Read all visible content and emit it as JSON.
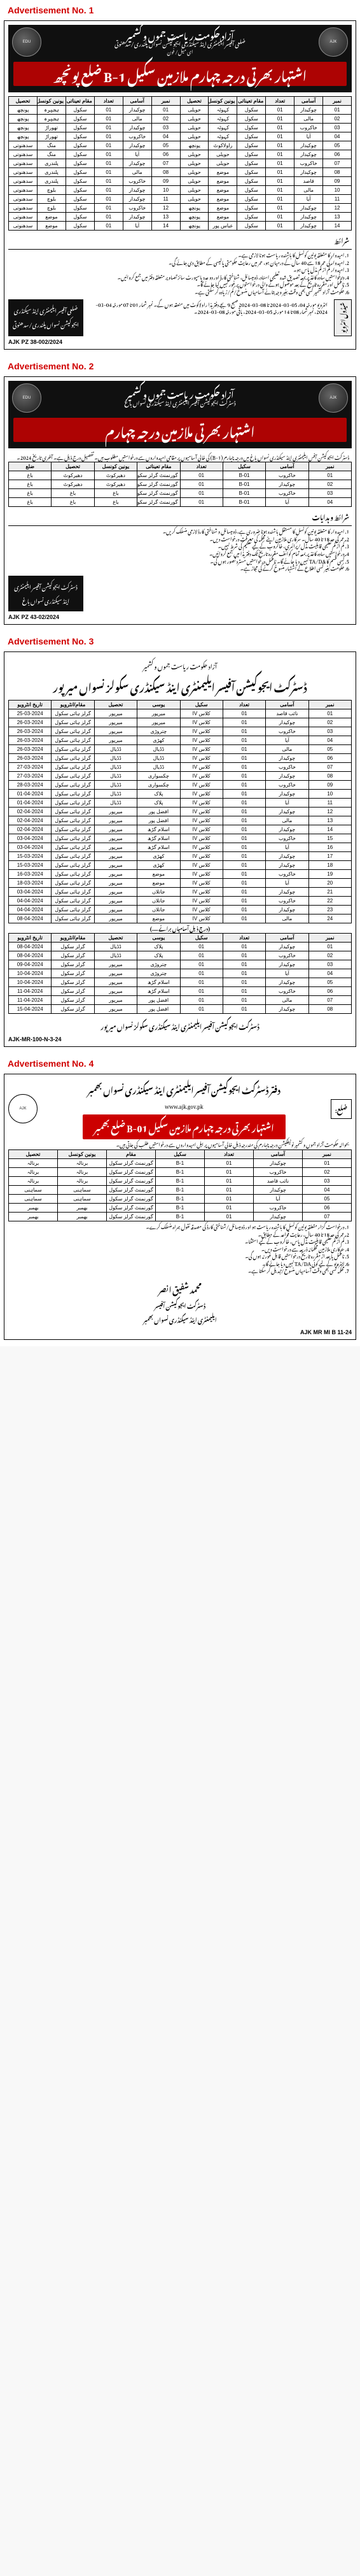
{
  "labels": {
    "ad1": "Advertisement No. 1",
    "ad2": "Advertisement No. 2",
    "ad3": "Advertisement No. 3",
    "ad4": "Advertisement No. 4"
  },
  "ad1": {
    "ref": "AJK PZ 38-002/2024",
    "org_l1": "آزاد حکومت ریاست جموں و کشمیر",
    "org_l2": "ضلعی آفیسر ایلیمنٹری اینڈ سیکنڈری ایجوکیشن نسواں پلندری/سدھنوتی",
    "org_l3": "ای میل/ فون",
    "title": "اشتہار بھرتی درجہ چہارم ملازمین سکیل B-1 ضلع پونچھ",
    "cols": [
      "نمبر",
      "آسامی",
      "تعداد",
      "مقام تعیناتی",
      "یونین کونسل",
      "تحصیل"
    ],
    "rows_right": [
      [
        "01",
        "چوکیدار",
        "01",
        "سکول",
        "کہوٹہ",
        "حویلی"
      ],
      [
        "02",
        "مالی",
        "01",
        "سکول",
        "کہوٹہ",
        "حویلی"
      ],
      [
        "03",
        "خاکروب",
        "01",
        "سکول",
        "کہوٹہ",
        "حویلی"
      ],
      [
        "04",
        "آیا",
        "01",
        "سکول",
        "کہوٹہ",
        "حویلی"
      ],
      [
        "05",
        "چوکیدار",
        "01",
        "سکول",
        "راولاکوٹ",
        "پونچھ"
      ],
      [
        "06",
        "چوکیدار",
        "01",
        "سکول",
        "حویلی",
        "حویلی"
      ],
      [
        "07",
        "خاکروب",
        "01",
        "سکول",
        "حویلی",
        "حویلی"
      ],
      [
        "08",
        "چوکیدار",
        "01",
        "سکول",
        "موضع",
        "حویلی"
      ],
      [
        "09",
        "قاصد",
        "01",
        "سکول",
        "موضع",
        "حویلی"
      ],
      [
        "10",
        "مالی",
        "01",
        "سکول",
        "موضع",
        "حویلی"
      ],
      [
        "11",
        "آیا",
        "01",
        "سکول",
        "موضع",
        "حویلی"
      ],
      [
        "12",
        "چوکیدار",
        "01",
        "سکول",
        "موضع",
        "پونچھ"
      ],
      [
        "13",
        "چوکیدار",
        "01",
        "سکول",
        "موضع",
        "پونچھ"
      ],
      [
        "14",
        "چوکیدار",
        "01",
        "سکول",
        "عباس پور",
        "پونچھ"
      ]
    ],
    "rows_left": [
      [
        "01",
        "چوکیدار",
        "01",
        "سکول",
        "ہجیرہ",
        "پونچھ"
      ],
      [
        "02",
        "مالی",
        "01",
        "سکول",
        "ہجیرہ",
        "پونچھ"
      ],
      [
        "03",
        "چوکیدار",
        "01",
        "سکول",
        "تھوراڑ",
        "پونچھ"
      ],
      [
        "04",
        "خاکروب",
        "01",
        "سکول",
        "تھوراڑ",
        "پونچھ"
      ],
      [
        "05",
        "چوکیدار",
        "01",
        "سکول",
        "منگ",
        "سدھنوتی"
      ],
      [
        "06",
        "آیا",
        "01",
        "سکول",
        "منگ",
        "سدھنوتی"
      ],
      [
        "07",
        "چوکیدار",
        "01",
        "سکول",
        "پلندری",
        "سدھنوتی"
      ],
      [
        "08",
        "مالی",
        "01",
        "سکول",
        "پلندری",
        "سدھنوتی"
      ],
      [
        "09",
        "خاکروب",
        "01",
        "سکول",
        "پلندری",
        "سدھنوتی"
      ],
      [
        "10",
        "چوکیدار",
        "01",
        "سکول",
        "بلوچ",
        "سدھنوتی"
      ],
      [
        "11",
        "چوکیدار",
        "01",
        "سکول",
        "بلوچ",
        "سدھنوتی"
      ],
      [
        "12",
        "خاکروب",
        "01",
        "سکول",
        "بلوچ",
        "سدھنوتی"
      ],
      [
        "13",
        "چوکیدار",
        "01",
        "سکول",
        "موضع",
        "سدھنوتی"
      ],
      [
        "14",
        "آیا",
        "01",
        "سکول",
        "موضع",
        "سدھنوتی"
      ]
    ],
    "sharait_h": "شرائط",
    "sharait": [
      "امیدوار کا متعلقہ یونین کونسل کا باشندہ ریاست ہونا لازمی ہے۔",
      "امیدوار کی عمر 18 سے 40 سال کے درمیان ہو، عمر میں رعایت حکومتی پالیسی کے مطابق دی جائے گی۔",
      "امیدوار کم از کم مڈل پاس ہو۔",
      "درخواستیں سادہ کاغذ پر بمعہ تصدیق شدہ تعلیمی اسناد، ڈومیسائل، شناختی کارڈ اور دو عدد پاسپورٹ سائز تصاویر متعلقہ دفتر میں جمع کروائیں۔",
      "نامکمل اور مقررہ تاریخ کے بعد موصول ہونے والی درخواستوں پر غور نہیں کیا جائے گا۔",
      "حکومت آزاد کشمیر کسی بھی وقت بغیر وجہ بتائے آسامیاں منسوخ/کم/زیادہ کر سکتی ہے۔"
    ],
    "schedule_label": "شیڈول انٹرویو",
    "schedule_text": "انٹرویو مورخہ 04، 05-03-2024 تا 08-03-2024 صبح 9 بجے دفتر ہذا راولاکوٹ میں منعقد ہوں گے۔ نمبر شمار 01 تا 07 مورخہ 04-03-2024، نمبر شمار 08 تا 14 مورخہ 05-03-2024، باقی مورخہ 08-03-2024۔",
    "signatory": "ضلعی آفیسر\nایلیمنٹری اینڈ سیکنڈری ایجوکیشن نسواں\nپلندری/سدھنوتی"
  },
  "ad2": {
    "ref": "AJK PZ 43-02/2024",
    "org_l1": "آزاد حکومت ریاست جموں و کشمیر",
    "org_l2": "ڈسٹرکٹ ایجوکیشن آفیسر ایلیمنٹری اینڈ سیکنڈری نسواں باغ",
    "title": "اشتہار بھرتی ملازمین درجہ چہارم",
    "intro": "ڈسٹرکٹ ایجوکیشن آفس ایلیمنٹری اینڈ سیکنڈری نسواں باغ میں درجہ چہارم (B-1) کی خالی آسامیوں پر مقامی امیدواروں سے درخواستیں مطلوب ہیں۔ تفصیل درج ذیل ہے۔ آخری تاریخ 2024۔",
    "cols": [
      "نمبر",
      "آسامی",
      "سکیل",
      "تعداد",
      "مقام تعیناتی",
      "یونین کونسل",
      "تحصیل",
      "ضلع"
    ],
    "rows": [
      [
        "01",
        "خاکروب",
        "B-01",
        "01",
        "گورنمنٹ گرلز سکول",
        "دھیرکوٹ",
        "دھیرکوٹ",
        "باغ"
      ],
      [
        "02",
        "چوکیدار",
        "B-01",
        "01",
        "گورنمنٹ گرلز سکول",
        "دھیرکوٹ",
        "دھیرکوٹ",
        "باغ"
      ],
      [
        "03",
        "خاکروب",
        "B-01",
        "01",
        "گورنمنٹ گرلز سکول",
        "باغ",
        "باغ",
        "باغ"
      ],
      [
        "04",
        "آیا",
        "B-01",
        "01",
        "گورنمنٹ گرلز سکول",
        "باغ",
        "باغ",
        "باغ"
      ]
    ],
    "conditions_h": "شرائط و ہدایات",
    "conditions": [
      "امیدوار کا متعلقہ یونین کونسل کا مستقل باشندہ ہونا ضروری ہے، ڈومیسائل و شناختی کارڈ لازمی منسلک کریں۔",
      "عمر کی حد 18 تا 40 سال۔ سرکاری ملازمین اپنے محکمہ کی معرفت درخواست دیں۔",
      "کم از کم تعلیمی قابلیت مڈل/پرائمری، خاکروب کے لیے تعلیم کی شرط نہیں۔",
      "درخواستیں سادہ کاغذ پر بمعہ تمام کوائف مقررہ تاریخ تک دفتر ہذا میں جمع کروائیں۔",
      "کسی قسم کا TA/DA نہیں دیا جائے گا۔ نامکمل درخواستیں مسترد تصور ہوں گی۔",
      "حکومت بغیر کسی اطلاع کے اشتہار منسوخ کرنے کی مجاز ہے۔"
    ],
    "signatory": "ڈسٹرکٹ ایجوکیشن آفیسر\nایلیمنٹری اینڈ سیکنڈری نسواں\nباغ"
  },
  "ad3": {
    "ref": "AJK-MR-100-N-3-24",
    "top": "آزاد حکومت ریاست جموں و کشمیر",
    "title": "ڈسٹرکٹ ایجوکیشن آفیسر ایلیمنٹری اینڈ سیکنڈری سکولز نسواں میرپور",
    "cols": [
      "نمبر",
      "آسامی",
      "تعداد",
      "سکیل",
      "یوسی",
      "تحصیل",
      "مقام/انٹرویو",
      "تاریخ انٹرویو"
    ],
    "rows1": [
      [
        "01",
        "نائب قاصد",
        "01",
        "کلاس IV",
        "میرپور",
        "میرپور",
        "گرلز ہائی سکول",
        "25-03-2024"
      ],
      [
        "02",
        "چوکیدار",
        "01",
        "کلاس IV",
        "میرپور",
        "میرپور",
        "گرلز ہائی سکول",
        "26-03-2024"
      ],
      [
        "03",
        "خاکروب",
        "01",
        "کلاس IV",
        "چتروڑی",
        "میرپور",
        "گرلز ہائی سکول",
        "26-03-2024"
      ],
      [
        "04",
        "آیا",
        "01",
        "کلاس IV",
        "کھڑی",
        "میرپور",
        "گرلز ہائی سکول",
        "26-03-2024"
      ],
      [
        "05",
        "مالی",
        "01",
        "کلاس IV",
        "ڈڈیال",
        "ڈڈیال",
        "گرلز ہائی سکول",
        "26-03-2024"
      ],
      [
        "06",
        "چوکیدار",
        "01",
        "کلاس IV",
        "ڈڈیال",
        "ڈڈیال",
        "گرلز ہائی سکول",
        "26-03-2024"
      ],
      [
        "07",
        "خاکروب",
        "01",
        "کلاس IV",
        "ڈڈیال",
        "ڈڈیال",
        "گرلز ہائی سکول",
        "27-03-2024"
      ],
      [
        "08",
        "چوکیدار",
        "01",
        "کلاس IV",
        "چکسواری",
        "ڈڈیال",
        "گرلز ہائی سکول",
        "27-03-2024"
      ],
      [
        "09",
        "خاکروب",
        "01",
        "کلاس IV",
        "چکسواری",
        "ڈڈیال",
        "گرلز ہائی سکول",
        "28-03-2024"
      ],
      [
        "10",
        "چوکیدار",
        "01",
        "کلاس IV",
        "پلاک",
        "ڈڈیال",
        "گرلز ہائی سکول",
        "01-04-2024"
      ],
      [
        "11",
        "آیا",
        "01",
        "کلاس IV",
        "پلاک",
        "ڈڈیال",
        "گرلز ہائی سکول",
        "01-04-2024"
      ],
      [
        "12",
        "چوکیدار",
        "01",
        "کلاس IV",
        "افضل پور",
        "میرپور",
        "گرلز ہائی سکول",
        "02-04-2024"
      ],
      [
        "13",
        "مالی",
        "01",
        "کلاس IV",
        "افضل پور",
        "میرپور",
        "گرلز ہائی سکول",
        "02-04-2024"
      ],
      [
        "14",
        "چوکیدار",
        "01",
        "کلاس IV",
        "اسلام گڑھ",
        "میرپور",
        "گرلز ہائی سکول",
        "02-04-2024"
      ],
      [
        "15",
        "خاکروب",
        "01",
        "کلاس IV",
        "اسلام گڑھ",
        "میرپور",
        "گرلز ہائی سکول",
        "03-04-2024"
      ],
      [
        "16",
        "آیا",
        "01",
        "کلاس IV",
        "اسلام گڑھ",
        "میرپور",
        "گرلز ہائی سکول",
        "03-04-2024"
      ],
      [
        "17",
        "چوکیدار",
        "01",
        "کلاس IV",
        "کھڑی",
        "میرپور",
        "گرلز ہائی سکول",
        "15-03-2024"
      ],
      [
        "18",
        "چوکیدار",
        "01",
        "کلاس IV",
        "کھڑی",
        "میرپور",
        "گرلز ہائی سکول",
        "15-03-2024"
      ],
      [
        "19",
        "خاکروب",
        "01",
        "کلاس IV",
        "موضع",
        "میرپور",
        "گرلز ہائی سکول",
        "16-03-2024"
      ],
      [
        "20",
        "آیا",
        "01",
        "کلاس IV",
        "موضع",
        "میرپور",
        "گرلز ہائی سکول",
        "18-03-2024"
      ],
      [
        "21",
        "چوکیدار",
        "01",
        "کلاس IV",
        "جاتلاں",
        "میرپور",
        "گرلز ہائی سکول",
        "03-04-2024"
      ],
      [
        "22",
        "خاکروب",
        "01",
        "کلاس IV",
        "جاتلاں",
        "میرپور",
        "گرلز ہائی سکول",
        "04-04-2024"
      ],
      [
        "23",
        "چوکیدار",
        "01",
        "کلاس IV",
        "جاتلاں",
        "میرپور",
        "گرلز ہائی سکول",
        "04-04-2024"
      ],
      [
        "24",
        "مالی",
        "01",
        "کلاس IV",
        "موضع",
        "میرپور",
        "گرلز ہائی سکول",
        "08-04-2024"
      ]
    ],
    "sub_h": "(درج ذیل آسامیاں برائے ....)",
    "rows2": [
      [
        "01",
        "چوکیدار",
        "01",
        "01",
        "پلاک",
        "ڈڈیال",
        "گرلز سکول",
        "08-04-2024"
      ],
      [
        "02",
        "خاکروب",
        "01",
        "01",
        "پلاک",
        "ڈڈیال",
        "گرلز سکول",
        "08-04-2024"
      ],
      [
        "03",
        "چوکیدار",
        "01",
        "01",
        "چتروڑی",
        "میرپور",
        "گرلز سکول",
        "09-04-2024"
      ],
      [
        "04",
        "آیا",
        "01",
        "01",
        "چتروڑی",
        "میرپور",
        "گرلز سکول",
        "10-04-2024"
      ],
      [
        "05",
        "چوکیدار",
        "01",
        "01",
        "اسلام گڑھ",
        "میرپور",
        "گرلز سکول",
        "10-04-2024"
      ],
      [
        "06",
        "خاکروب",
        "01",
        "01",
        "اسلام گڑھ",
        "میرپور",
        "گرلز سکول",
        "11-04-2024"
      ],
      [
        "07",
        "مالی",
        "01",
        "01",
        "افضل پور",
        "میرپور",
        "گرلز سکول",
        "11-04-2024"
      ],
      [
        "08",
        "چوکیدار",
        "01",
        "01",
        "افضل پور",
        "میرپور",
        "گرلز سکول",
        "15-04-2024"
      ]
    ],
    "signatory": "ڈسٹرکٹ ایجوکیشن آفیسر\nایلیمنٹری اینڈ سیکنڈری سکولز نسواں میرپور"
  },
  "ad4": {
    "ref": "AJK MR MI B 11-24",
    "side": "ضلع:",
    "org": "دفتر ڈسٹرکٹ ایجوکیشن آفیسر ایلیمنٹری اینڈ سیکنڈری نسواں بھمبر",
    "sub": "www.ajk.gov.pk",
    "title": "اشتہار بھرتی درجہ چہارم ملازمین سکیل B-01 ضلع بھمبر",
    "intro": "بحوالہ حکومت آزاد جموں و کشمیر نوٹیفکیشن درجہ چہارم کی مندرجہ ذیل خالی آسامیوں پر اہل امیدواروں سے درخواستیں طلب کی جاتی ہیں۔",
    "cols": [
      "نمبر",
      "آسامی",
      "تعداد",
      "سکیل",
      "مقام",
      "یونین کونسل",
      "تحصیل"
    ],
    "rows": [
      [
        "01",
        "چوکیدار",
        "01",
        "B-1",
        "گورنمنٹ گرلز سکول",
        "برنالہ",
        "برنالہ"
      ],
      [
        "02",
        "خاکروب",
        "01",
        "B-1",
        "گورنمنٹ گرلز سکول",
        "برنالہ",
        "برنالہ"
      ],
      [
        "03",
        "نائب قاصد",
        "01",
        "B-1",
        "گورنمنٹ گرلز سکول",
        "برنالہ",
        "برنالہ"
      ],
      [
        "04",
        "چوکیدار",
        "01",
        "B-1",
        "گورنمنٹ گرلز سکول",
        "سماہنی",
        "سماہنی"
      ],
      [
        "05",
        "آیا",
        "01",
        "B-1",
        "گورنمنٹ گرلز سکول",
        "سماہنی",
        "سماہنی"
      ],
      [
        "06",
        "خاکروب",
        "01",
        "B-1",
        "گورنمنٹ گرلز سکول",
        "بھمبر",
        "بھمبر"
      ],
      [
        "07",
        "چوکیدار",
        "01",
        "B-1",
        "گورنمنٹ گرلز سکول",
        "بھمبر",
        "بھمبر"
      ]
    ],
    "conditions": [
      "درخواست گزار متعلقہ یونین کونسل کا باشندہ ریاست ہو اور ڈومیسائل/شناختی کارڈ کی مصدقہ نقول ہمراہ منسلک کرے۔",
      "عمر کی حد 18 تا 40 سال، رعایت قواعد کے مطابق۔",
      "کم از کم تعلیمی قابلیت مڈل پاس، خاکروب کے لیے استثنا۔",
      "سرکاری ملازمین محکمانہ ذریعہ سے درخواست دیں۔",
      "نامکمل یا بعد از مقررہ تاریخ درخواستیں قابل غور نہ ہوں گی۔",
      "انٹرویو کے لیے کوئی TA/DA نہیں دیا جائے گا۔",
      "محکمہ کسی بھی وقت آسامیاں منسوخ/تبدیل کر سکتا ہے۔"
    ],
    "sig_name": "محمد شفیق انصر",
    "sig_title": "ڈسٹرکٹ ایجوکیشن آفیسر\nایلیمنٹری اینڈ سیکنڈری نسواں بھمبر"
  }
}
